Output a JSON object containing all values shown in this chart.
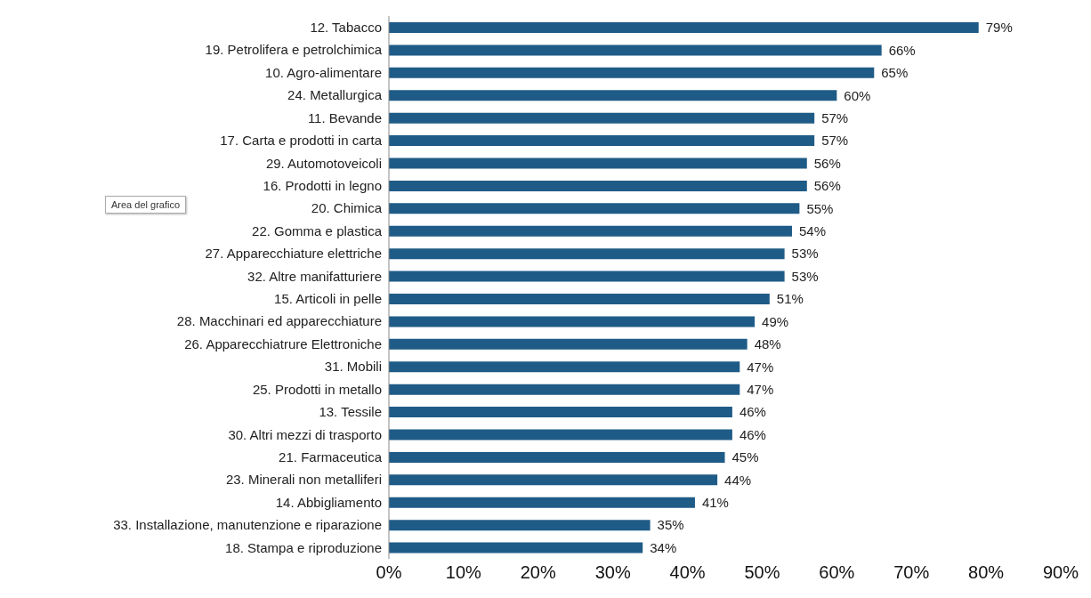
{
  "chart_data": {
    "type": "bar",
    "orientation": "horizontal",
    "categories": [
      "12. Tabacco",
      "19. Petrolifera e petrolchimica",
      "10. Agro-alimentare",
      "24. Metallurgica",
      "11. Bevande",
      "17. Carta e prodotti in carta",
      "29. Automotoveicoli",
      "16. Prodotti in legno",
      "20. Chimica",
      "22. Gomma e plastica",
      "27. Apparecchiature elettriche",
      "32. Altre manifatturiere",
      "15. Articoli in pelle",
      "28. Macchinari ed apparecchiature",
      "26. Apparecchiatrure Elettroniche",
      "31. Mobili",
      "25. Prodotti in metallo",
      "13. Tessile",
      "30. Altri mezzi di trasporto",
      "21. Farmaceutica",
      "23. Minerali non metalliferi",
      "14. Abbigliamento",
      "33. Installazione, manutenzione e riparazione",
      "18. Stampa e riproduzione"
    ],
    "values": [
      79,
      66,
      65,
      60,
      57,
      57,
      56,
      56,
      55,
      54,
      53,
      53,
      51,
      49,
      48,
      47,
      47,
      46,
      46,
      45,
      44,
      41,
      35,
      34
    ],
    "value_labels": [
      "79%",
      "66%",
      "65%",
      "60%",
      "57%",
      "57%",
      "56%",
      "56%",
      "55%",
      "54%",
      "53%",
      "53%",
      "51%",
      "49%",
      "48%",
      "47%",
      "47%",
      "46%",
      "46%",
      "45%",
      "44%",
      "41%",
      "35%",
      "34%"
    ],
    "color": "#1f5b87",
    "xlim": [
      0,
      90
    ],
    "xticks": [
      {
        "value": 0,
        "label": "0%"
      },
      {
        "value": 10,
        "label": "10%"
      },
      {
        "value": 20,
        "label": "20%"
      },
      {
        "value": 30,
        "label": "30%"
      },
      {
        "value": 40,
        "label": "40%"
      },
      {
        "value": 50,
        "label": "50%"
      },
      {
        "value": 60,
        "label": "60%"
      },
      {
        "value": 70,
        "label": "70%"
      },
      {
        "value": 80,
        "label": "80%"
      },
      {
        "value": 90,
        "label": "90%"
      }
    ],
    "annotations": [
      "Area del grafico"
    ],
    "grid": false
  }
}
